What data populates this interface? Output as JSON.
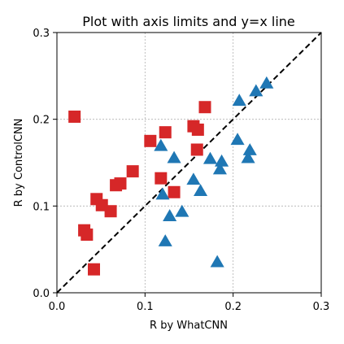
{
  "chart_data": {
    "type": "scatter",
    "title": "Plot with axis limits and y=x line",
    "xlabel": "R by WhatCNN",
    "ylabel": "R by ControlCNN",
    "xlim": [
      0.0,
      0.3
    ],
    "ylim": [
      0.0,
      0.3
    ],
    "xticks": [
      0.0,
      0.1,
      0.2,
      0.3
    ],
    "yticks": [
      0.0,
      0.1,
      0.2,
      0.3
    ],
    "xtick_labels": [
      "0.0",
      "0.1",
      "0.2",
      "0.3"
    ],
    "ytick_labels": [
      "0.0",
      "0.1",
      "0.2",
      "0.3"
    ],
    "grid": true,
    "reference_line": {
      "label": "",
      "slope": 1,
      "intercept": 0,
      "style": "dashed",
      "color": "#000000"
    },
    "series": [
      {
        "marker": "square",
        "color": "#d62728",
        "points": [
          {
            "x": 0.02,
            "y": 0.203
          },
          {
            "x": 0.031,
            "y": 0.072
          },
          {
            "x": 0.034,
            "y": 0.067
          },
          {
            "x": 0.042,
            "y": 0.027
          },
          {
            "x": 0.045,
            "y": 0.108
          },
          {
            "x": 0.051,
            "y": 0.101
          },
          {
            "x": 0.061,
            "y": 0.094
          },
          {
            "x": 0.067,
            "y": 0.124
          },
          {
            "x": 0.072,
            "y": 0.126
          },
          {
            "x": 0.086,
            "y": 0.14
          },
          {
            "x": 0.106,
            "y": 0.175
          },
          {
            "x": 0.118,
            "y": 0.132
          },
          {
            "x": 0.123,
            "y": 0.185
          },
          {
            "x": 0.133,
            "y": 0.116
          },
          {
            "x": 0.155,
            "y": 0.192
          },
          {
            "x": 0.159,
            "y": 0.165
          },
          {
            "x": 0.16,
            "y": 0.188
          },
          {
            "x": 0.168,
            "y": 0.214
          }
        ]
      },
      {
        "marker": "triangle",
        "color": "#1f77b4",
        "points": [
          {
            "x": 0.118,
            "y": 0.169
          },
          {
            "x": 0.12,
            "y": 0.113
          },
          {
            "x": 0.123,
            "y": 0.059
          },
          {
            "x": 0.128,
            "y": 0.088
          },
          {
            "x": 0.133,
            "y": 0.155
          },
          {
            "x": 0.142,
            "y": 0.093
          },
          {
            "x": 0.155,
            "y": 0.13
          },
          {
            "x": 0.163,
            "y": 0.117
          },
          {
            "x": 0.174,
            "y": 0.154
          },
          {
            "x": 0.182,
            "y": 0.035
          },
          {
            "x": 0.185,
            "y": 0.142
          },
          {
            "x": 0.187,
            "y": 0.151
          },
          {
            "x": 0.205,
            "y": 0.176
          },
          {
            "x": 0.207,
            "y": 0.221
          },
          {
            "x": 0.217,
            "y": 0.155
          },
          {
            "x": 0.219,
            "y": 0.164
          },
          {
            "x": 0.226,
            "y": 0.232
          },
          {
            "x": 0.238,
            "y": 0.241
          }
        ]
      }
    ]
  }
}
